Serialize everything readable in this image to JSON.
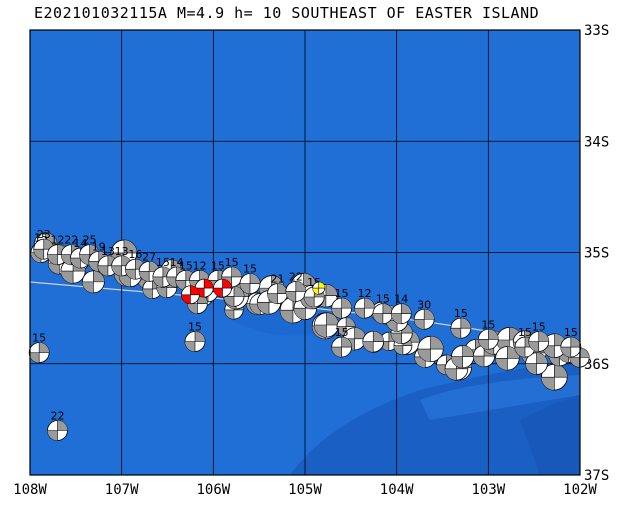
{
  "header": {
    "title": "E202101032115A M=4.9 h= 10 SOUTHEAST OF EASTER ISLAND"
  },
  "map": {
    "lon_range": [
      -108,
      -102
    ],
    "lat_range": [
      -37,
      -33
    ],
    "lon_ticks": [
      {
        "value": -108,
        "label": "108W"
      },
      {
        "value": -107,
        "label": "107W"
      },
      {
        "value": -106,
        "label": "106W"
      },
      {
        "value": -105,
        "label": "105W"
      },
      {
        "value": -104,
        "label": "104W"
      },
      {
        "value": -103,
        "label": "103W"
      },
      {
        "value": -102,
        "label": "102W"
      }
    ],
    "lat_ticks": [
      {
        "value": -33,
        "label": "33S"
      },
      {
        "value": -34,
        "label": "34S"
      },
      {
        "value": -35,
        "label": "35S"
      },
      {
        "value": -36,
        "label": "36S"
      },
      {
        "value": -37,
        "label": "37S"
      }
    ],
    "colors": {
      "ocean": "#1f6fd6",
      "deep_ocean": "#1a5fc4",
      "grid": "#000000",
      "plate_boundary": "#d0d0d0",
      "mechanism_fill": "#ffffff",
      "mechanism_compression": "#9a9a9a",
      "highlight_compression": "#ff0000",
      "main_event_compression": "#ffff00"
    },
    "events": [
      {
        "lon": -107.88,
        "lat": -35.0,
        "label": "15"
      },
      {
        "lon": -107.85,
        "lat": -34.97,
        "label": "23"
      },
      {
        "lon": -107.7,
        "lat": -35.02,
        "label": "12"
      },
      {
        "lon": -107.55,
        "lat": -35.02,
        "label": "22"
      },
      {
        "lon": -107.45,
        "lat": -35.05,
        "label": "14"
      },
      {
        "lon": -107.35,
        "lat": -35.02,
        "label": "25"
      },
      {
        "lon": -107.25,
        "lat": -35.08,
        "label": "19"
      },
      {
        "lon": -107.15,
        "lat": -35.12,
        "label": "13"
      },
      {
        "lon": -107.0,
        "lat": -35.12,
        "label": "13"
      },
      {
        "lon": -106.85,
        "lat": -35.15,
        "label": "16"
      },
      {
        "lon": -106.7,
        "lat": -35.17,
        "label": "27"
      },
      {
        "lon": -106.55,
        "lat": -35.22,
        "label": "15"
      },
      {
        "lon": -106.4,
        "lat": -35.22,
        "label": "14"
      },
      {
        "lon": -106.3,
        "lat": -35.25,
        "label": "15"
      },
      {
        "lon": -106.15,
        "lat": -35.25,
        "label": "12"
      },
      {
        "lon": -105.95,
        "lat": -35.25,
        "label": "15"
      },
      {
        "lon": -105.8,
        "lat": -35.22,
        "label": "15"
      },
      {
        "lon": -105.6,
        "lat": -35.28,
        "label": "15"
      },
      {
        "lon": -105.3,
        "lat": -35.37,
        "label": "21"
      },
      {
        "lon": -105.1,
        "lat": -35.35,
        "label": "22"
      },
      {
        "lon": -104.9,
        "lat": -35.4,
        "label": "15"
      },
      {
        "lon": -104.6,
        "lat": -35.5,
        "label": "15"
      },
      {
        "lon": -104.35,
        "lat": -35.5,
        "label": "12"
      },
      {
        "lon": -104.15,
        "lat": -35.55,
        "label": "15"
      },
      {
        "lon": -103.95,
        "lat": -35.55,
        "label": "14"
      },
      {
        "lon": -103.7,
        "lat": -35.6,
        "label": "30"
      },
      {
        "lon": -103.3,
        "lat": -35.68,
        "label": "15"
      },
      {
        "lon": -103.0,
        "lat": -35.78,
        "label": "15"
      },
      {
        "lon": -102.6,
        "lat": -35.85,
        "label": "15"
      },
      {
        "lon": -102.45,
        "lat": -35.8,
        "label": "15"
      },
      {
        "lon": -102.1,
        "lat": -35.85,
        "label": "15"
      },
      {
        "lon": -107.9,
        "lat": -35.9,
        "label": "15"
      },
      {
        "lon": -107.7,
        "lat": -36.6,
        "label": "22"
      },
      {
        "lon": -106.2,
        "lat": -35.8,
        "label": "15"
      },
      {
        "lon": -104.6,
        "lat": -35.85,
        "label": "15"
      }
    ],
    "main_event": {
      "lon": -104.85,
      "lat": -35.32
    }
  }
}
